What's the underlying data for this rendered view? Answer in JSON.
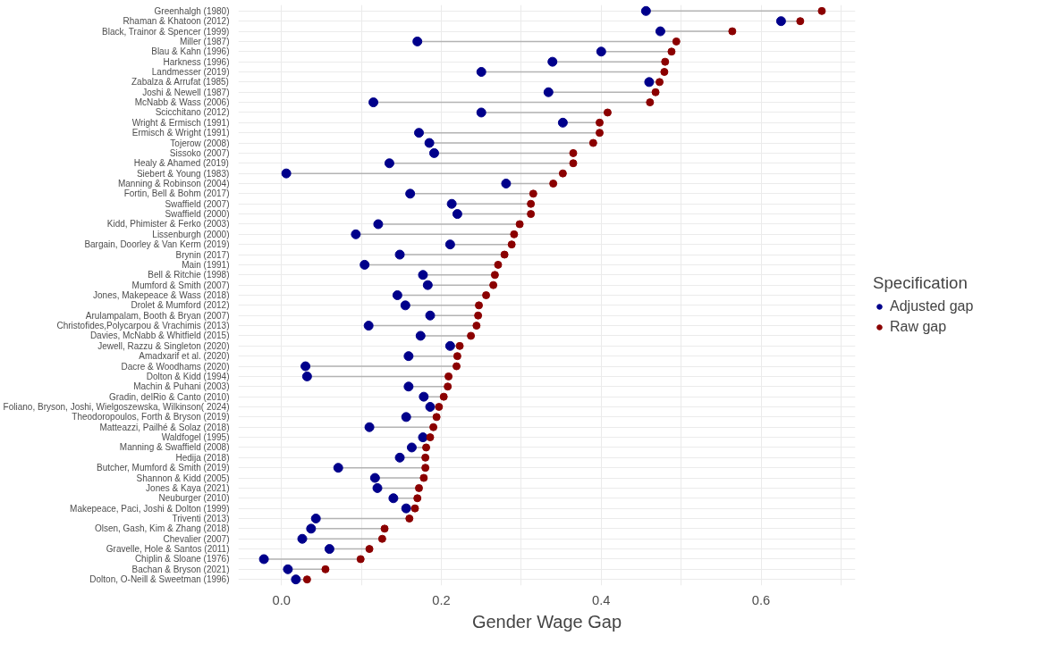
{
  "chart_data": {
    "type": "scatter",
    "orientation": "horizontal",
    "xlabel": "Gender Wage Gap",
    "legend_title": "Specification",
    "legend": "right",
    "grid": true,
    "marker": "circle",
    "xlim": [
      -0.054,
      0.718
    ],
    "xticks": [
      {
        "value": 0,
        "label": "0.0"
      },
      {
        "value": 0.2,
        "label": "0.2"
      },
      {
        "value": 0.4,
        "label": "0.4"
      },
      {
        "value": 0.6,
        "label": "0.6"
      }
    ],
    "categories": [
      "Greenhalgh (1980)",
      "Rhaman & Khatoon (2012)",
      "Black, Trainor & Spencer (1999)",
      "Miller (1987)",
      "Blau & Kahn (1996)",
      "Harkness (1996)",
      "Landmesser (2019)",
      "Zabalza & Arrufat (1985)",
      "Joshi & Newell (1987)",
      "McNabb & Wass (2006)",
      "Scicchitano (2012)",
      "Wright & Ermisch (1991)",
      "Ermisch & Wright (1991)",
      "Tojerow (2008)",
      "Sissoko (2007)",
      "Healy & Ahamed (2019)",
      "Siebert & Young (1983)",
      "Manning & Robinson (2004)",
      "Fortin, Bell & Bohm (2017)",
      "Swaffield (2007)",
      "Swaffield (2000)",
      "Kidd, Phimister & Ferko (2003)",
      "Lissenburgh (2000)",
      "Bargain, Doorley & Van Kerm (2019)",
      "Brynin (2017)",
      "Main (1991)",
      "Bell & Ritchie (1998)",
      "Mumford & Smith (2007)",
      "Jones, Makepeace & Wass (2018)",
      "Drolet & Mumford (2012)",
      "Arulampalam, Booth & Bryan (2007)",
      "Christofides,Polycarpou & Vrachimis (2013)",
      "Davies, McNabb & Whitfield (2015)",
      "Jewell, Razzu & Singleton (2020)",
      "Amadxarif et al. (2020)",
      "Dacre & Woodhams (2020)",
      "Dolton & Kidd (1994)",
      "Machin & Puhani (2003)",
      "Gradin, delRio & Canto (2010)",
      "Foliano, Bryson, Joshi, Wielgoszewska, Wilkinson( 2024)",
      "Theodoropoulos, Forth & Bryson (2019)",
      "Matteazzi, Pailhé & Solaz (2018)",
      "Waldfogel (1995)",
      "Manning & Swaffield (2008)",
      "Hedija (2018)",
      "Butcher, Mumford & Smith (2019)",
      "Shannon & Kidd (2005)",
      "Jones & Kaya (2021)",
      "Neuburger (2010)",
      "Makepeace, Paci, Joshi & Dolton (1999)",
      "Triventi (2013)",
      "Olsen, Gash, Kim & Zhang (2018)",
      "Chevalier (2007)",
      "Gravelle, Hole & Santos (2011)",
      "Chiplin & Sloane (1976)",
      "Bachan & Bryson (2021)",
      "Dolton, O-Neill & Sweetman (1996)"
    ],
    "series": [
      {
        "name": "Adjusted gap",
        "color": "#00008b",
        "values": [
          0.456,
          0.625,
          0.474,
          0.17,
          0.4,
          0.339,
          0.25,
          0.46,
          0.334,
          0.115,
          0.25,
          0.352,
          0.172,
          0.185,
          0.191,
          0.135,
          0.006,
          0.281,
          0.161,
          0.213,
          0.22,
          0.121,
          0.093,
          0.211,
          0.148,
          0.104,
          0.177,
          0.183,
          0.145,
          0.155,
          0.186,
          0.109,
          0.174,
          0.211,
          0.159,
          0.03,
          0.032,
          0.159,
          0.178,
          0.186,
          0.156,
          0.11,
          0.177,
          0.163,
          0.148,
          0.071,
          0.117,
          0.12,
          0.14,
          0.156,
          0.043,
          0.037,
          0.026,
          0.06,
          -0.022,
          0.008,
          0.018
        ]
      },
      {
        "name": "Raw gap",
        "color": "#8b0000",
        "values": [
          0.676,
          0.649,
          0.564,
          0.494,
          0.488,
          0.48,
          0.479,
          0.473,
          0.468,
          0.461,
          0.408,
          0.398,
          0.398,
          0.39,
          0.365,
          0.365,
          0.352,
          0.34,
          0.315,
          0.312,
          0.312,
          0.298,
          0.291,
          0.288,
          0.279,
          0.271,
          0.267,
          0.265,
          0.256,
          0.247,
          0.246,
          0.244,
          0.237,
          0.223,
          0.22,
          0.219,
          0.209,
          0.208,
          0.203,
          0.197,
          0.194,
          0.19,
          0.186,
          0.181,
          0.18,
          0.18,
          0.178,
          0.172,
          0.17,
          0.167,
          0.16,
          0.129,
          0.126,
          0.11,
          0.099,
          0.055,
          0.032
        ]
      }
    ]
  }
}
